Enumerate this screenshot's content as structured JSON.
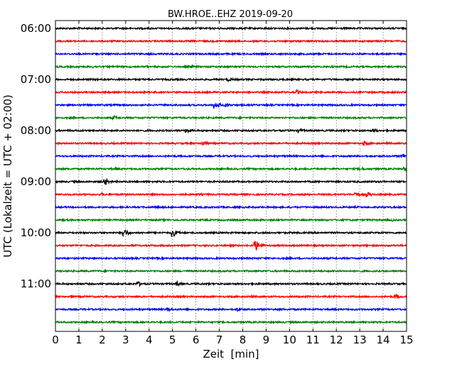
{
  "chart_data": {
    "type": "line",
    "title": "BW.HROE..EHZ 2019-09-20",
    "xlabel": "Zeit  [min]",
    "ylabel": "UTC (Lokalzeit = UTC + 02:00)",
    "xlim": [
      0,
      15
    ],
    "x_ticks": [
      0,
      1,
      2,
      3,
      4,
      5,
      6,
      7,
      8,
      9,
      10,
      11,
      12,
      13,
      14,
      15
    ],
    "y_tick_labels": [
      "06:00",
      "07:00",
      "08:00",
      "09:00",
      "10:00",
      "11:00"
    ],
    "grid": true,
    "trace_colors": [
      "#000000",
      "#ff0000",
      "#0000ff",
      "#008000"
    ],
    "traces": [
      {
        "start": "06:00",
        "events": []
      },
      {
        "start": "06:15",
        "events": []
      },
      {
        "start": "06:30",
        "events": []
      },
      {
        "start": "06:45",
        "events": [
          {
            "t": 5.8,
            "amp": 2.5
          },
          {
            "t": 1.6,
            "amp": 2
          }
        ]
      },
      {
        "start": "07:00",
        "events": [
          {
            "t": 7.4,
            "amp": 3
          }
        ]
      },
      {
        "start": "07:15",
        "events": [
          {
            "t": 10.3,
            "amp": 3.5
          }
        ]
      },
      {
        "start": "07:30",
        "events": [
          {
            "t": 6.8,
            "amp": 6
          },
          {
            "t": 7.3,
            "amp": 3
          }
        ]
      },
      {
        "start": "07:45",
        "events": [
          {
            "t": 2.5,
            "amp": 3
          }
        ]
      },
      {
        "start": "08:00",
        "events": [
          {
            "t": 5.6,
            "amp": 3.5
          },
          {
            "t": 10.4,
            "amp": 3.5
          },
          {
            "t": 13.6,
            "amp": 3
          }
        ]
      },
      {
        "start": "08:15",
        "events": [
          {
            "t": 6.3,
            "amp": 4
          },
          {
            "t": 13.2,
            "amp": 3.5
          }
        ]
      },
      {
        "start": "08:30",
        "events": [
          {
            "t": 14.8,
            "amp": 3
          }
        ]
      },
      {
        "start": "08:45",
        "events": [
          {
            "t": 2.6,
            "amp": 3
          },
          {
            "t": 13.0,
            "amp": 3
          },
          {
            "t": 14.9,
            "amp": 3
          }
        ]
      },
      {
        "start": "09:00",
        "events": [
          {
            "t": 2.1,
            "amp": 5
          }
        ]
      },
      {
        "start": "09:15",
        "events": [
          {
            "t": 12.8,
            "amp": 3.5
          },
          {
            "t": 13.3,
            "amp": 4
          },
          {
            "t": 2.0,
            "amp": 2.5
          }
        ]
      },
      {
        "start": "09:30",
        "events": [
          {
            "t": 4.3,
            "amp": 2
          }
        ]
      },
      {
        "start": "09:45",
        "events": [
          {
            "t": 14.4,
            "amp": 2
          }
        ]
      },
      {
        "start": "10:00",
        "events": [
          {
            "t": 2.9,
            "amp": 6
          },
          {
            "t": 5.0,
            "amp": 6
          }
        ]
      },
      {
        "start": "10:15",
        "events": [
          {
            "t": 8.5,
            "amp": 9
          }
        ]
      },
      {
        "start": "10:30",
        "events": []
      },
      {
        "start": "10:45",
        "events": []
      },
      {
        "start": "11:00",
        "events": [
          {
            "t": 3.5,
            "amp": 4
          },
          {
            "t": 5.2,
            "amp": 3.5
          }
        ]
      },
      {
        "start": "11:15",
        "events": [
          {
            "t": 14.5,
            "amp": 4
          }
        ]
      },
      {
        "start": "11:30",
        "events": [
          {
            "t": 4.8,
            "amp": 3
          },
          {
            "t": 7.8,
            "amp": 3
          }
        ]
      },
      {
        "start": "11:45",
        "events": []
      }
    ]
  }
}
